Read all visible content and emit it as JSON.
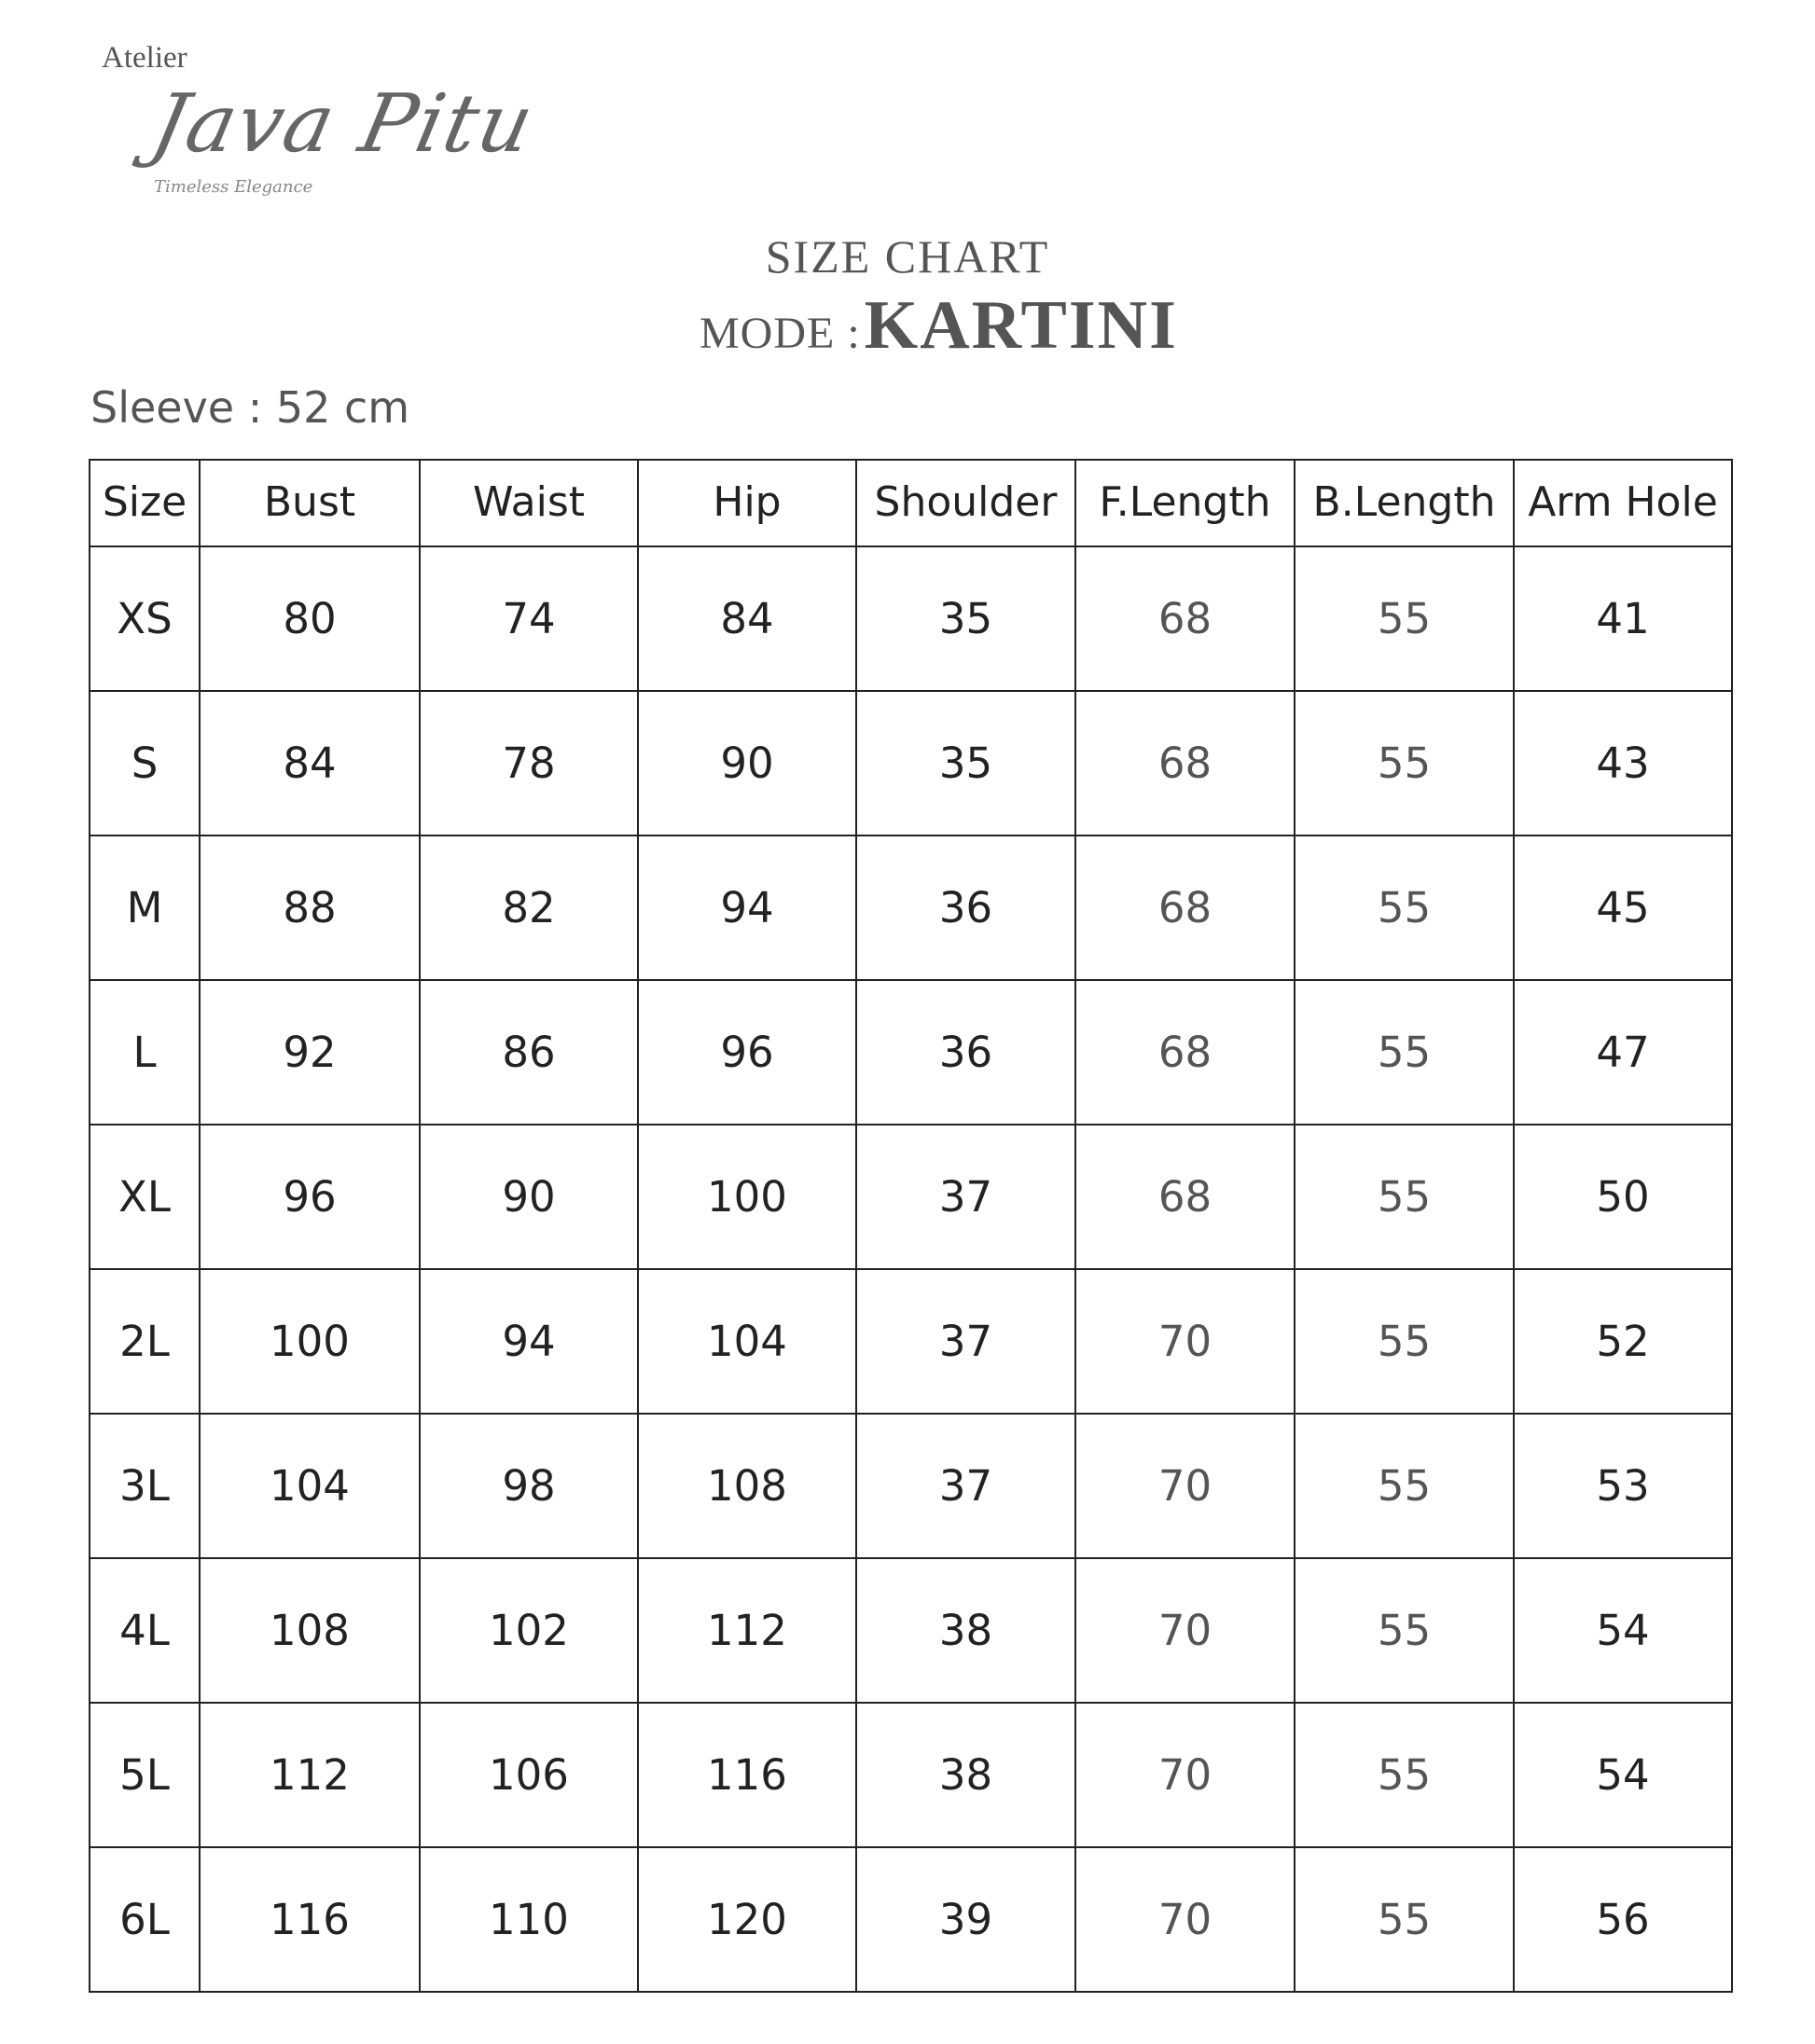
{
  "logo": {
    "line1": "Atelier",
    "script": "Java Pitu",
    "tagline": "Timeless Elegance"
  },
  "title": {
    "heading": "SIZE CHART",
    "mode_label": "MODE :",
    "mode_name": "KARTINI"
  },
  "sleeve": "Sleeve : 52 cm",
  "table": {
    "columns": [
      "Size",
      "Bust",
      "Waist",
      "Hip",
      "Shoulder",
      "F.Length",
      "B.Length",
      "Arm Hole"
    ],
    "rows": [
      [
        "XS",
        "80",
        "74",
        "84",
        "35",
        "68",
        "55",
        "41"
      ],
      [
        "S",
        "84",
        "78",
        "90",
        "35",
        "68",
        "55",
        "43"
      ],
      [
        "M",
        "88",
        "82",
        "94",
        "36",
        "68",
        "55",
        "45"
      ],
      [
        "L",
        "92",
        "86",
        "96",
        "36",
        "68",
        "55",
        "47"
      ],
      [
        "XL",
        "96",
        "90",
        "100",
        "37",
        "68",
        "55",
        "50"
      ],
      [
        "2L",
        "100",
        "94",
        "104",
        "37",
        "70",
        "55",
        "52"
      ],
      [
        "3L",
        "104",
        "98",
        "108",
        "37",
        "70",
        "55",
        "53"
      ],
      [
        "4L",
        "108",
        "102",
        "112",
        "38",
        "70",
        "55",
        "54"
      ],
      [
        "5L",
        "112",
        "106",
        "116",
        "38",
        "70",
        "55",
        "54"
      ],
      [
        "6L",
        "116",
        "110",
        "120",
        "39",
        "70",
        "55",
        "56"
      ]
    ]
  }
}
